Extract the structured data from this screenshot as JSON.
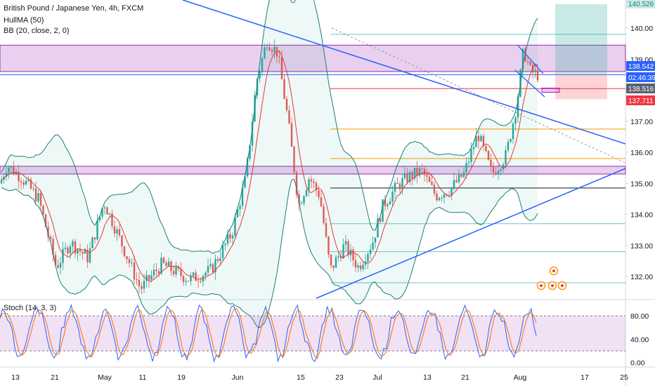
{
  "header": {
    "title": "British Pound / Japanese Yen, 4h, FXCM",
    "indicator1": "HullMA (50)",
    "indicator2": "BB (20, close, 2, 0)",
    "oscillator": "Stoch (14, 3, 3)"
  },
  "chart_data": {
    "type": "candlestick",
    "symbol": "GBPJPY",
    "timeframe": "4h",
    "ylim": [
      131.4,
      140.6
    ],
    "y_ticks": [
      "140.00",
      "139.00",
      "138.00",
      "137.00",
      "136.00",
      "135.00",
      "134.00",
      "133.00",
      "132.00"
    ],
    "x_ticks": [
      "13",
      "21",
      "May",
      "11",
      "19",
      "Jun",
      "15",
      "23",
      "Jul",
      "13",
      "21",
      "Aug",
      "17",
      "25"
    ],
    "price_tags": [
      {
        "label": "140.526",
        "bg": "#c9ebe8",
        "fg": "#2a7a72"
      },
      {
        "label": "138.542",
        "bg": "#2962ff",
        "fg": "#ffffff"
      },
      {
        "label": "02:46:39",
        "bg": "#2962ff",
        "fg": "#ffffff"
      },
      {
        "label": "138.516",
        "bg": "#5b6270",
        "fg": "#ffffff"
      },
      {
        "label": "137.711",
        "bg": "#f23645",
        "fg": "#ffffff"
      }
    ],
    "horizontal_levels": [
      {
        "price": 139.8,
        "color": "#6cc3c9"
      },
      {
        "price": 138.5,
        "color": "#2962ff"
      },
      {
        "price": 138.05,
        "color": "#f23645"
      },
      {
        "price": 136.75,
        "color": "#ff9800"
      },
      {
        "price": 135.8,
        "color": "#ff9800"
      },
      {
        "price": 134.85,
        "color": "#131722"
      },
      {
        "price": 133.7,
        "color": "#6cc3c9"
      },
      {
        "price": 132.8,
        "color": "#6cc3c9"
      },
      {
        "price": 131.8,
        "color": "#6cc3c9"
      }
    ],
    "zones": [
      {
        "top": 139.45,
        "bottom": 138.6,
        "color": "#9c27b0"
      },
      {
        "top": 135.55,
        "bottom": 135.3,
        "color": "#9c27b0"
      }
    ],
    "stochastic": {
      "ylim": [
        -8,
        112
      ],
      "ticks": [
        "80.00",
        "40.00",
        "0.00"
      ],
      "upper_band": 80,
      "lower_band": 20
    },
    "colors": {
      "up": "#26a69a",
      "down": "#ef5350",
      "bollinger": "#1b7f74",
      "hull": "#e53935",
      "trendline": "#2962ff"
    }
  }
}
